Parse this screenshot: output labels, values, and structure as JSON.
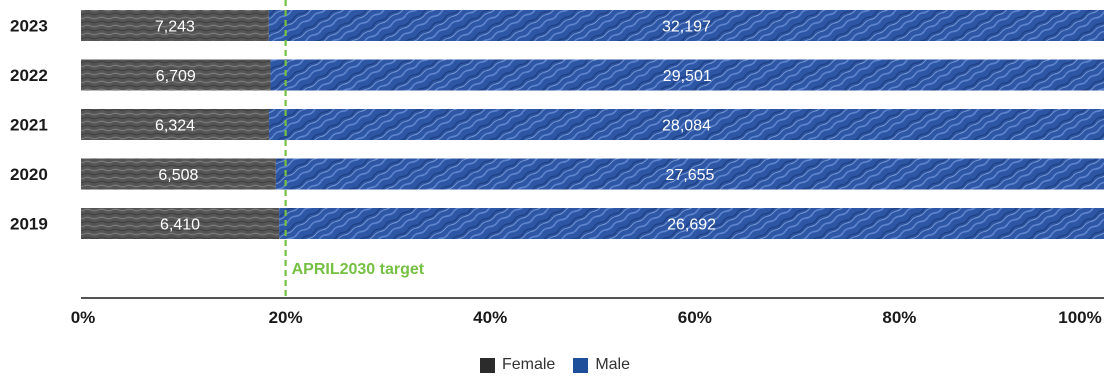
{
  "chart_data": {
    "type": "bar",
    "orientation": "horizontal",
    "stacked": "percent",
    "categories": [
      "2023",
      "2022",
      "2021",
      "2020",
      "2019"
    ],
    "series": [
      {
        "name": "Female",
        "values": [
          7243,
          6709,
          6324,
          6508,
          6410
        ],
        "color": "#555555"
      },
      {
        "name": "Male",
        "values": [
          32197,
          29501,
          28084,
          27655,
          26692
        ],
        "color": "#2d56a5"
      }
    ],
    "value_labels": {
      "Female": [
        "7,243",
        "6,709",
        "6,324",
        "6,508",
        "6,410"
      ],
      "Male": [
        "32,197",
        "29,501",
        "28,084",
        "27,655",
        "26,692"
      ]
    },
    "x_ticks": [
      "0%",
      "20%",
      "40%",
      "60%",
      "80%",
      "100%"
    ],
    "xlim": [
      0,
      100
    ],
    "target": {
      "value": 20,
      "label": "APRIL2030 target",
      "color": "#76c043"
    },
    "legend_position": "bottom",
    "grid": false
  }
}
